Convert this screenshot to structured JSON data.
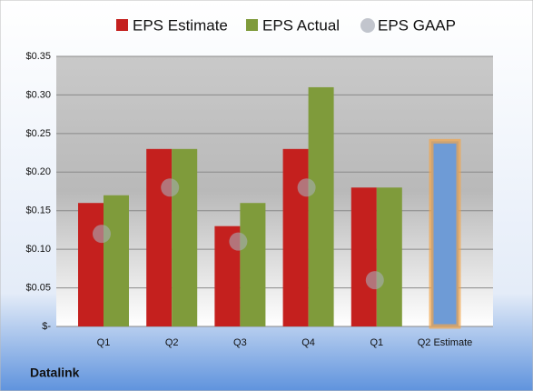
{
  "chart_data": {
    "type": "bar",
    "title": "Datalink",
    "categories": [
      "Q1",
      "Q2",
      "Q3",
      "Q4",
      "Q1",
      "Q2 Estimate"
    ],
    "series": [
      {
        "name": "EPS Estimate",
        "color": "#c4201e",
        "values": [
          0.16,
          0.23,
          0.13,
          0.23,
          0.18,
          null
        ]
      },
      {
        "name": "EPS Actual",
        "color": "#7f9b3b",
        "values": [
          0.17,
          0.23,
          0.16,
          0.31,
          0.18,
          null
        ]
      },
      {
        "name": "EPS GAAP",
        "color": "#a8adb8",
        "values": [
          0.12,
          0.18,
          0.11,
          0.18,
          0.06,
          null
        ]
      }
    ],
    "highlight": {
      "color": "#6e9bd6",
      "values": [
        null,
        null,
        null,
        null,
        null,
        0.24
      ]
    },
    "ylim": [
      0,
      0.35
    ],
    "yticks": [
      {
        "value": 0,
        "label": "$-"
      },
      {
        "value": 0.05,
        "label": "$0.05"
      },
      {
        "value": 0.1,
        "label": "$0.10"
      },
      {
        "value": 0.15,
        "label": "$0.15"
      },
      {
        "value": 0.2,
        "label": "$0.20"
      },
      {
        "value": 0.25,
        "label": "$0.25"
      },
      {
        "value": 0.3,
        "label": "$0.30"
      },
      {
        "value": 0.35,
        "label": "$0.35"
      }
    ],
    "grid": true
  }
}
